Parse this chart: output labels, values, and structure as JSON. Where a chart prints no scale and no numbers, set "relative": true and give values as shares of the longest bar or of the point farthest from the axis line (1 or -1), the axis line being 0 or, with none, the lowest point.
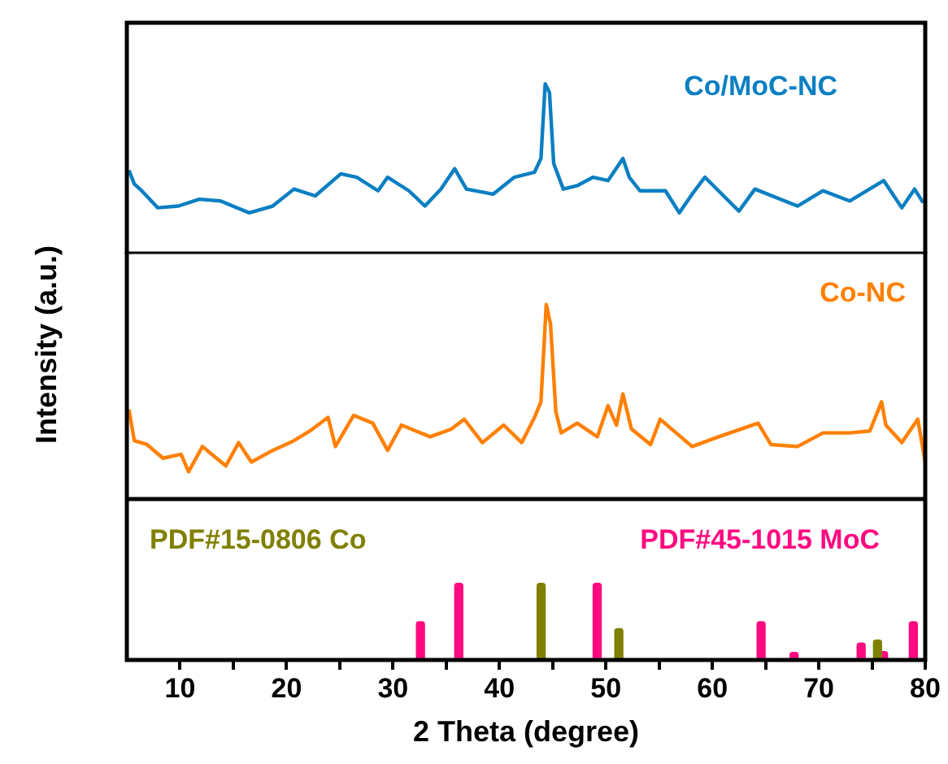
{
  "chart_data": [
    {
      "type": "line",
      "relative": true,
      "xlim": [
        5,
        80
      ],
      "tick_labels": false,
      "series": [
        {
          "name": "Co/MoC-NC",
          "color": "#0a7fc2",
          "x": [
            5.2,
            5.7,
            6.4,
            7.9,
            9.85,
            11.8,
            13.8,
            16.5,
            18.7,
            20.7,
            22.7,
            25.1,
            26.6,
            28.6,
            29.5,
            31.5,
            33,
            34.5,
            35.8,
            36.9,
            39.4,
            41.4,
            43.3,
            43.9,
            44.3,
            44.7,
            45.1,
            46.0,
            47.3,
            48.8,
            50.2,
            51.6,
            52.2,
            53.2,
            55.6,
            56.9,
            58.1,
            59.3,
            62.5,
            64.0,
            68.0,
            70.4,
            72.9,
            76.1,
            77.8,
            79.0,
            79.8
          ],
          "values": [
            0.49,
            0.41,
            0.37,
            0.27,
            0.28,
            0.32,
            0.31,
            0.24,
            0.28,
            0.38,
            0.34,
            0.47,
            0.45,
            0.37,
            0.45,
            0.37,
            0.28,
            0.38,
            0.5,
            0.38,
            0.35,
            0.45,
            0.48,
            0.56,
            1.0,
            0.95,
            0.53,
            0.38,
            0.4,
            0.45,
            0.43,
            0.56,
            0.45,
            0.37,
            0.37,
            0.24,
            0.35,
            0.45,
            0.25,
            0.38,
            0.28,
            0.37,
            0.31,
            0.43,
            0.27,
            0.38,
            0.3
          ]
        }
      ]
    },
    {
      "type": "line",
      "relative": true,
      "xlim": [
        5,
        80
      ],
      "tick_labels": false,
      "ylabel": "Intensity (a.u.)",
      "series": [
        {
          "name": "Co-NC",
          "color": "#ff8000",
          "x": [
            5.2,
            5.7,
            6.9,
            8.4,
            10.1,
            10.8,
            12.1,
            14.3,
            15.5,
            16.7,
            18.7,
            20.7,
            22.2,
            23.9,
            24.6,
            26.3,
            28.1,
            29.5,
            30.8,
            33.5,
            35.5,
            36.7,
            38.4,
            40.4,
            42.1,
            43.3,
            43.9,
            44.4,
            44.8,
            45.3,
            45.8,
            47.3,
            49.2,
            50.2,
            51.0,
            51.6,
            52.4,
            54.2,
            55.1,
            58.1,
            60.6,
            64.3,
            65.5,
            68.0,
            70.4,
            72.9,
            74.8,
            75.9,
            76.3,
            77.8,
            79.3,
            80
          ],
          "values": [
            0.46,
            0.3,
            0.28,
            0.21,
            0.23,
            0.14,
            0.27,
            0.17,
            0.29,
            0.19,
            0.25,
            0.3,
            0.35,
            0.42,
            0.27,
            0.43,
            0.39,
            0.25,
            0.38,
            0.32,
            0.36,
            0.41,
            0.29,
            0.38,
            0.29,
            0.42,
            0.5,
            1.0,
            0.9,
            0.45,
            0.34,
            0.39,
            0.32,
            0.48,
            0.38,
            0.54,
            0.36,
            0.28,
            0.41,
            0.27,
            0.32,
            0.39,
            0.28,
            0.27,
            0.34,
            0.34,
            0.35,
            0.5,
            0.38,
            0.29,
            0.41,
            0.19
          ]
        }
      ]
    },
    {
      "type": "bar",
      "relative": true,
      "xlim": [
        5,
        80
      ],
      "tick_labels": "x",
      "xlabel": "2 Theta (degree)",
      "xticks": [
        10,
        {
          "value": 15,
          "label": null
        },
        20,
        {
          "value": 25,
          "label": null
        },
        30,
        {
          "value": 35,
          "label": null
        },
        40,
        {
          "value": 45,
          "label": null
        },
        50,
        {
          "value": 55,
          "label": null
        },
        60,
        {
          "value": 65,
          "label": null
        },
        70,
        {
          "value": 75,
          "label": null
        },
        80
      ],
      "series": [
        {
          "name": "PDF#15-0806 Co",
          "color": "#808000",
          "x": [
            44.3,
            51.6,
            75.9
          ],
          "values": [
            1.0,
            0.41,
            0.26
          ]
        },
        {
          "name": "PDF#45-1015 MoC",
          "color": "#ff0a80",
          "x": [
            32.2,
            35.8,
            48.8,
            64.2,
            67.3,
            73.6,
            75.7,
            78.5
          ],
          "values": [
            0.5,
            1.0,
            1.0,
            0.5,
            0.1,
            0.22,
            0.11,
            0.5
          ]
        }
      ]
    }
  ]
}
